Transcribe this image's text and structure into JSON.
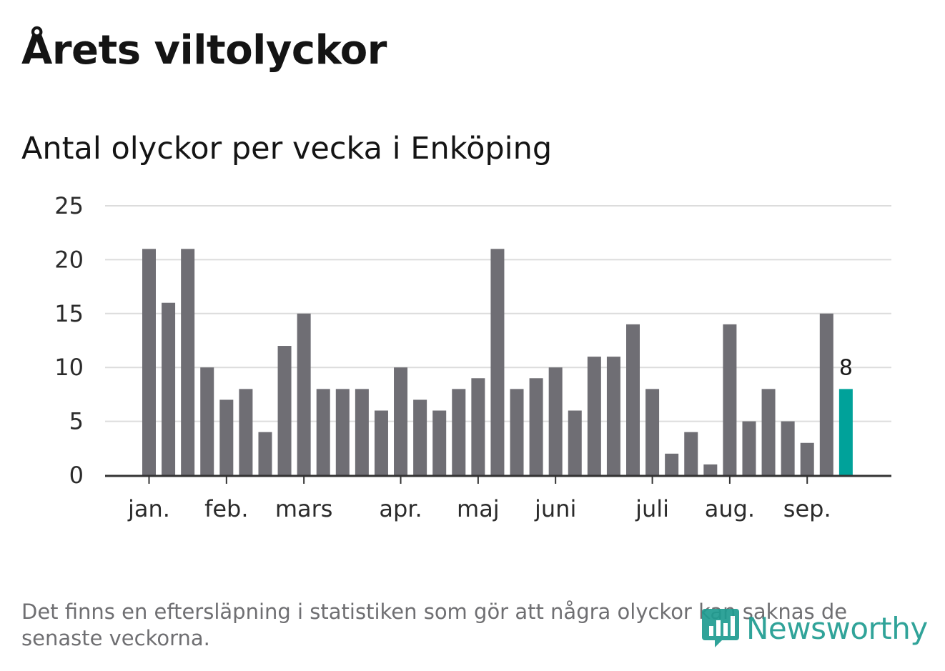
{
  "title": "Årets viltolyckor",
  "subtitle": "Antal olyckor per vecka i Enköping",
  "footnote": "Det finns en eftersläpning i statistiken som gör att några olyckor kan saknas de senaste veckorna.",
  "logo": {
    "text": "Newsworthy",
    "icon": "bar-chart-speech-icon",
    "color": "#1f9c91"
  },
  "chart_data": {
    "type": "bar",
    "ylim": [
      0,
      25
    ],
    "yticks": [
      0,
      5,
      10,
      15,
      20,
      25
    ],
    "grid": true,
    "bar_color": "#6f6e74",
    "highlight_color": "#00a29a",
    "values": [
      21,
      16,
      21,
      10,
      7,
      8,
      4,
      12,
      15,
      8,
      8,
      8,
      6,
      10,
      7,
      6,
      8,
      9,
      21,
      8,
      9,
      10,
      6,
      11,
      11,
      14,
      8,
      2,
      4,
      1,
      14,
      5,
      8,
      5,
      3,
      15,
      8
    ],
    "highlight_index": 36,
    "highlight_label": "8",
    "month_ticks": [
      {
        "label": "jan.",
        "week": 1
      },
      {
        "label": "feb.",
        "week": 5
      },
      {
        "label": "mars",
        "week": 9
      },
      {
        "label": "apr.",
        "week": 14
      },
      {
        "label": "maj",
        "week": 18
      },
      {
        "label": "juni",
        "week": 22
      },
      {
        "label": "juli",
        "week": 27
      },
      {
        "label": "aug.",
        "week": 31
      },
      {
        "label": "sep.",
        "week": 35
      }
    ]
  }
}
